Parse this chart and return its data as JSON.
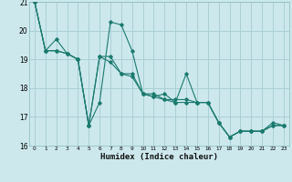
{
  "xlabel": "Humidex (Indice chaleur)",
  "xlim": [
    -0.5,
    23.5
  ],
  "ylim": [
    16,
    21
  ],
  "yticks": [
    16,
    17,
    18,
    19,
    20,
    21
  ],
  "xticks": [
    0,
    1,
    2,
    3,
    4,
    5,
    6,
    7,
    8,
    9,
    10,
    11,
    12,
    13,
    14,
    15,
    16,
    17,
    18,
    19,
    20,
    21,
    22,
    23
  ],
  "bg_color": "#cce8ed",
  "grid_color": "#aacfd6",
  "line_color": "#1a7a6e",
  "series": [
    [
      21.0,
      19.3,
      19.7,
      19.2,
      19.0,
      16.7,
      17.5,
      20.3,
      20.2,
      19.3,
      17.8,
      17.7,
      17.8,
      17.5,
      18.5,
      17.5,
      17.5,
      16.8,
      16.3,
      16.5,
      16.5,
      16.5,
      16.7,
      16.7
    ],
    [
      21.0,
      19.3,
      19.3,
      19.2,
      19.0,
      16.7,
      19.1,
      19.1,
      18.5,
      18.5,
      17.8,
      17.8,
      17.6,
      17.6,
      17.6,
      17.5,
      17.5,
      16.8,
      16.3,
      16.5,
      16.5,
      16.5,
      16.8,
      16.7
    ],
    [
      21.0,
      19.3,
      19.3,
      19.2,
      19.0,
      16.7,
      19.1,
      18.9,
      18.5,
      18.4,
      17.8,
      17.7,
      17.6,
      17.5,
      17.5,
      17.5,
      17.5,
      16.8,
      16.3,
      16.5,
      16.5,
      16.5,
      16.7,
      16.7
    ]
  ]
}
